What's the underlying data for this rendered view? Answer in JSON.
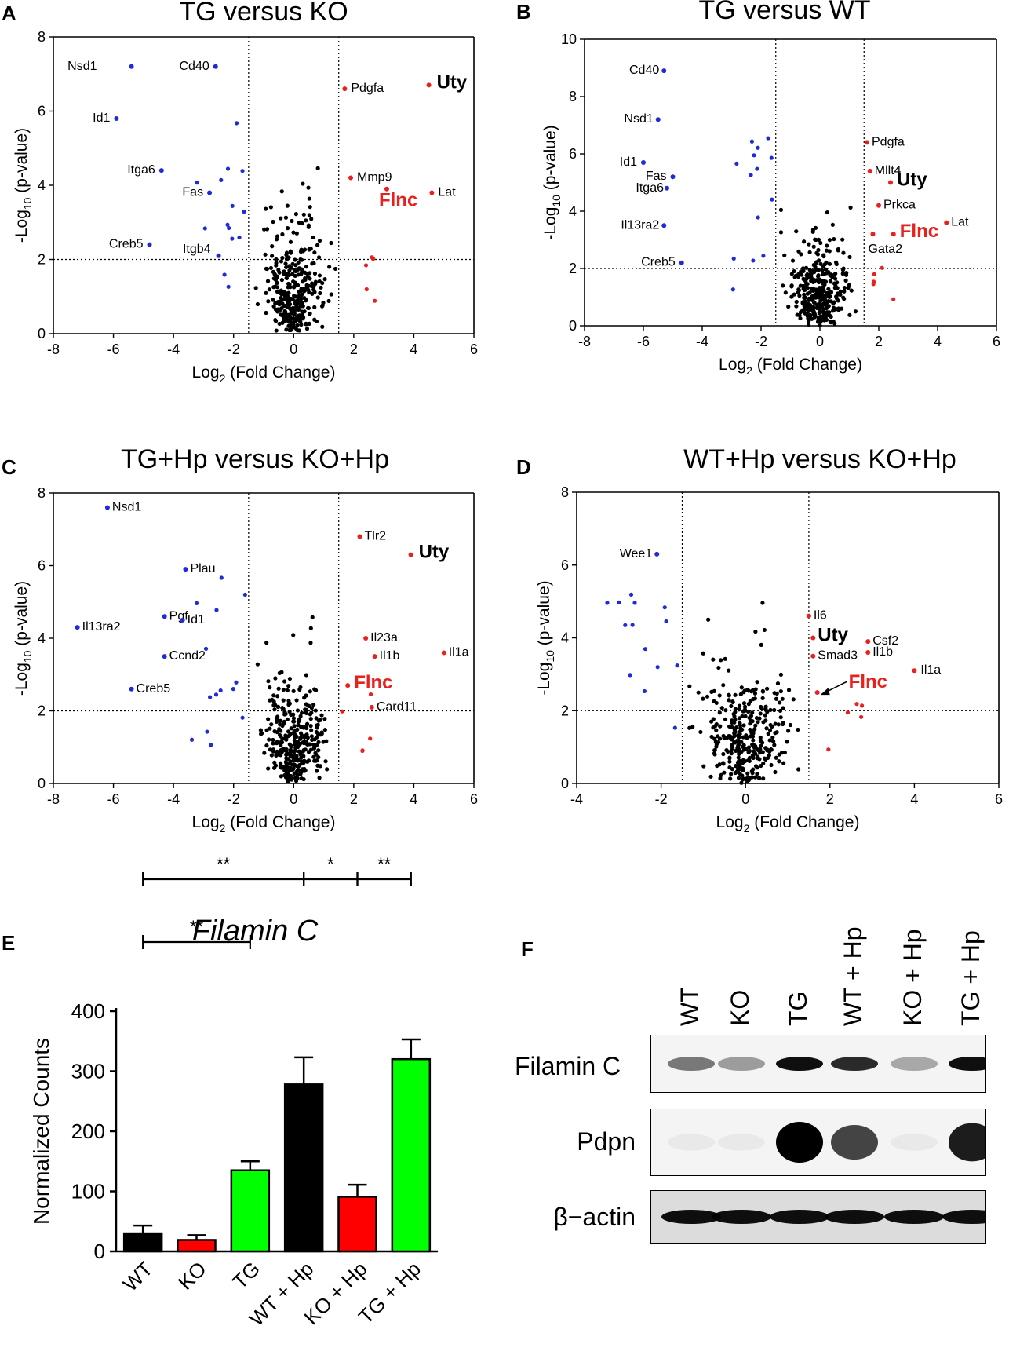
{
  "panels": [
    {
      "letter": "A",
      "title": "TG  versus  KO",
      "xlabel_main": "Log",
      "xlabel_sub": "2",
      "xlabel_rest": " (Fold Change)",
      "ylabel_main": "-Log",
      "ylabel_sub": "10",
      "ylabel_rest": " (p-value)",
      "xticks": [
        "-8",
        "-6",
        "-4",
        "-2",
        "0",
        "2",
        "4",
        "6"
      ],
      "yticks": [
        "0",
        "2",
        "4",
        "6",
        "8"
      ],
      "labels": [
        {
          "text": "Nsd1",
          "color": "#000000"
        },
        {
          "text": "Cd40",
          "color": "#000000"
        },
        {
          "text": "Id1",
          "color": "#000000"
        },
        {
          "text": "Itga6",
          "color": "#000000"
        },
        {
          "text": "Fas",
          "color": "#000000"
        },
        {
          "text": "Creb5",
          "color": "#000000"
        },
        {
          "text": "Itgb4",
          "color": "#000000"
        },
        {
          "text": "Pdgfa",
          "color": "#000000"
        },
        {
          "text": "Uty",
          "color": "#000000"
        },
        {
          "text": "Mmp9",
          "color": "#000000"
        },
        {
          "text": "Lat",
          "color": "#000000"
        },
        {
          "text": "Flnc",
          "color": "#e8201e"
        }
      ]
    },
    {
      "letter": "B",
      "title": "TG  versus  WT",
      "xlabel_main": "Log",
      "xlabel_sub": "2",
      "xlabel_rest": " (Fold Change)",
      "ylabel_main": "-Log",
      "ylabel_sub": "10",
      "ylabel_rest": " (p-value)",
      "xticks": [
        "-8",
        "-6",
        "-4",
        "-2",
        "0",
        "2",
        "4",
        "6"
      ],
      "yticks": [
        "0",
        "2",
        "4",
        "6",
        "8",
        "10"
      ],
      "labels": [
        {
          "text": "Cd40",
          "color": "#000000"
        },
        {
          "text": "Nsd1",
          "color": "#000000"
        },
        {
          "text": "Id1",
          "color": "#000000"
        },
        {
          "text": "Fas",
          "color": "#000000"
        },
        {
          "text": "Itga6",
          "color": "#000000"
        },
        {
          "text": "Il13ra2",
          "color": "#000000"
        },
        {
          "text": "Creb5",
          "color": "#000000"
        },
        {
          "text": "Pdgfa",
          "color": "#000000"
        },
        {
          "text": "Mllt4",
          "color": "#000000"
        },
        {
          "text": "Uty",
          "color": "#000000"
        },
        {
          "text": "Prkca",
          "color": "#000000"
        },
        {
          "text": "Lat",
          "color": "#000000"
        },
        {
          "text": "Flnc",
          "color": "#e8201e"
        },
        {
          "text": "Gata2",
          "color": "#000000"
        }
      ]
    },
    {
      "letter": "C",
      "title": "TG+Hp  versus  KO+Hp",
      "xlabel_main": "Log",
      "xlabel_sub": "2",
      "xlabel_rest": " (Fold Change)",
      "ylabel_main": "-Log",
      "ylabel_sub": "10",
      "ylabel_rest": " (p-value)",
      "xticks": [
        "-8",
        "-6",
        "-4",
        "-2",
        "0",
        "2",
        "4",
        "6"
      ],
      "yticks": [
        "0",
        "2",
        "4",
        "6",
        "8"
      ],
      "labels": [
        {
          "text": "Nsd1",
          "color": "#000000"
        },
        {
          "text": "Plau",
          "color": "#000000"
        },
        {
          "text": "Pgf",
          "color": "#000000"
        },
        {
          "text": "Id1",
          "color": "#000000"
        },
        {
          "text": "Il13ra2",
          "color": "#000000"
        },
        {
          "text": "Ccnd2",
          "color": "#000000"
        },
        {
          "text": "Creb5",
          "color": "#000000"
        },
        {
          "text": "Tlr2",
          "color": "#000000"
        },
        {
          "text": "Uty",
          "color": "#000000"
        },
        {
          "text": "Il23a",
          "color": "#000000"
        },
        {
          "text": "Il1b",
          "color": "#000000"
        },
        {
          "text": "Il1a",
          "color": "#000000"
        },
        {
          "text": "Flnc",
          "color": "#e8201e"
        },
        {
          "text": "Card11",
          "color": "#000000"
        }
      ]
    },
    {
      "letter": "D",
      "title": "WT+Hp  versus  KO+Hp",
      "xlabel_main": "Log",
      "xlabel_sub": "2",
      "xlabel_rest": " (Fold Change)",
      "ylabel_main": "-Log",
      "ylabel_sub": "10",
      "ylabel_rest": " (p-value)",
      "xticks": [
        "-4",
        "-2",
        "0",
        "2",
        "4",
        "6"
      ],
      "yticks": [
        "0",
        "2",
        "4",
        "6",
        "8"
      ],
      "labels": [
        {
          "text": "Wee1",
          "color": "#000000"
        },
        {
          "text": "Il6",
          "color": "#000000"
        },
        {
          "text": "Uty",
          "color": "#000000"
        },
        {
          "text": "Smad3",
          "color": "#000000"
        },
        {
          "text": "Csf2",
          "color": "#000000"
        },
        {
          "text": "Il1b",
          "color": "#000000"
        },
        {
          "text": "Il1a",
          "color": "#000000"
        },
        {
          "text": "Flnc",
          "color": "#e8201e"
        }
      ]
    }
  ],
  "chart_data": [
    {
      "type": "scatter",
      "panel": "A",
      "title": "TG  versus  KO",
      "xlabel": "Log2 (Fold Change)",
      "ylabel": "-Log10 (p-value)",
      "xlim": [
        -8,
        6
      ],
      "ylim": [
        0,
        8
      ],
      "thresholds": {
        "x": [
          -1.5,
          1.5
        ],
        "y": 2
      },
      "labeled_points": [
        {
          "label": "Nsd1",
          "x": -5.4,
          "y": 7.2,
          "group": "down"
        },
        {
          "label": "Cd40",
          "x": -2.6,
          "y": 7.2,
          "group": "down"
        },
        {
          "label": "Id1",
          "x": -5.9,
          "y": 5.8,
          "group": "down"
        },
        {
          "label": "Itga6",
          "x": -4.4,
          "y": 4.4,
          "group": "down"
        },
        {
          "label": "Fas",
          "x": -2.8,
          "y": 3.8,
          "group": "down"
        },
        {
          "label": "Creb5",
          "x": -4.8,
          "y": 2.4,
          "group": "down"
        },
        {
          "label": "Itgb4",
          "x": -2.5,
          "y": 2.1,
          "group": "down"
        },
        {
          "label": "Pdgfa",
          "x": 1.7,
          "y": 6.6,
          "group": "up"
        },
        {
          "label": "Uty",
          "x": 4.5,
          "y": 6.7,
          "group": "up"
        },
        {
          "label": "Mmp9",
          "x": 1.9,
          "y": 4.2,
          "group": "up"
        },
        {
          "label": "Lat",
          "x": 4.6,
          "y": 3.8,
          "group": "up"
        },
        {
          "label": "Flnc",
          "x": 3.1,
          "y": 3.9,
          "group": "up"
        }
      ]
    },
    {
      "type": "scatter",
      "panel": "B",
      "title": "TG  versus  WT",
      "xlabel": "Log2 (Fold Change)",
      "ylabel": "-Log10 (p-value)",
      "xlim": [
        -8,
        6
      ],
      "ylim": [
        0,
        10
      ],
      "thresholds": {
        "x": [
          -1.5,
          1.5
        ],
        "y": 2
      },
      "labeled_points": [
        {
          "label": "Cd40",
          "x": -5.3,
          "y": 8.9,
          "group": "down"
        },
        {
          "label": "Nsd1",
          "x": -5.5,
          "y": 7.2,
          "group": "down"
        },
        {
          "label": "Id1",
          "x": -6.0,
          "y": 5.7,
          "group": "down"
        },
        {
          "label": "Fas",
          "x": -5.0,
          "y": 5.2,
          "group": "down"
        },
        {
          "label": "Itga6",
          "x": -5.2,
          "y": 4.8,
          "group": "down"
        },
        {
          "label": "Il13ra2",
          "x": -5.3,
          "y": 3.5,
          "group": "down"
        },
        {
          "label": "Creb5",
          "x": -4.7,
          "y": 2.2,
          "group": "down"
        },
        {
          "label": "Pdgfa",
          "x": 1.6,
          "y": 6.4,
          "group": "up"
        },
        {
          "label": "Mllt4",
          "x": 1.7,
          "y": 5.4,
          "group": "up"
        },
        {
          "label": "Uty",
          "x": 2.4,
          "y": 5.0,
          "group": "up"
        },
        {
          "label": "Prkca",
          "x": 2.0,
          "y": 4.2,
          "group": "up"
        },
        {
          "label": "Lat",
          "x": 4.3,
          "y": 3.6,
          "group": "up"
        },
        {
          "label": "Flnc",
          "x": 2.5,
          "y": 3.2,
          "group": "up"
        },
        {
          "label": "Gata2",
          "x": 1.8,
          "y": 3.2,
          "group": "up"
        }
      ]
    },
    {
      "type": "scatter",
      "panel": "C",
      "title": "TG+Hp  versus  KO+Hp",
      "xlabel": "Log2 (Fold Change)",
      "ylabel": "-Log10 (p-value)",
      "xlim": [
        -8,
        6
      ],
      "ylim": [
        0,
        8
      ],
      "thresholds": {
        "x": [
          -1.5,
          1.5
        ],
        "y": 2
      },
      "labeled_points": [
        {
          "label": "Nsd1",
          "x": -6.2,
          "y": 7.6,
          "group": "down"
        },
        {
          "label": "Plau",
          "x": -3.6,
          "y": 5.9,
          "group": "down"
        },
        {
          "label": "Pgf",
          "x": -4.3,
          "y": 4.6,
          "group": "down"
        },
        {
          "label": "Id1",
          "x": -3.7,
          "y": 4.5,
          "group": "down"
        },
        {
          "label": "Il13ra2",
          "x": -7.2,
          "y": 4.3,
          "group": "down"
        },
        {
          "label": "Ccnd2",
          "x": -4.3,
          "y": 3.5,
          "group": "down"
        },
        {
          "label": "Creb5",
          "x": -5.4,
          "y": 2.6,
          "group": "down"
        },
        {
          "label": "Tlr2",
          "x": 2.2,
          "y": 6.8,
          "group": "up"
        },
        {
          "label": "Uty",
          "x": 3.9,
          "y": 6.3,
          "group": "up"
        },
        {
          "label": "Il23a",
          "x": 2.4,
          "y": 4.0,
          "group": "up"
        },
        {
          "label": "Il1b",
          "x": 2.7,
          "y": 3.5,
          "group": "up"
        },
        {
          "label": "Il1a",
          "x": 5.0,
          "y": 3.6,
          "group": "up"
        },
        {
          "label": "Flnc",
          "x": 1.8,
          "y": 2.7,
          "group": "up"
        },
        {
          "label": "Card11",
          "x": 2.6,
          "y": 2.1,
          "group": "up"
        }
      ]
    },
    {
      "type": "scatter",
      "panel": "D",
      "title": "WT+Hp  versus  KO+Hp",
      "xlabel": "Log2 (Fold Change)",
      "ylabel": "-Log10 (p-value)",
      "xlim": [
        -4,
        6
      ],
      "ylim": [
        0,
        8
      ],
      "thresholds": {
        "x": [
          -1.5,
          1.5
        ],
        "y": 2
      },
      "labeled_points": [
        {
          "label": "Wee1",
          "x": -2.1,
          "y": 6.3,
          "group": "down"
        },
        {
          "label": "Il6",
          "x": 1.5,
          "y": 4.6,
          "group": "up"
        },
        {
          "label": "Uty",
          "x": 1.6,
          "y": 4.0,
          "group": "up"
        },
        {
          "label": "Smad3",
          "x": 1.6,
          "y": 3.5,
          "group": "up"
        },
        {
          "label": "Csf2",
          "x": 2.9,
          "y": 3.9,
          "group": "up"
        },
        {
          "label": "Il1b",
          "x": 2.9,
          "y": 3.6,
          "group": "up"
        },
        {
          "label": "Il1a",
          "x": 4.0,
          "y": 3.1,
          "group": "up"
        },
        {
          "label": "Flnc",
          "x": 1.7,
          "y": 2.5,
          "group": "up"
        }
      ]
    },
    {
      "type": "bar",
      "panel": "E",
      "title": "Filamin C",
      "ylabel": "Normalized Counts",
      "ylim": [
        0,
        400
      ],
      "yticks": [
        "0",
        "100",
        "200",
        "300",
        "400"
      ],
      "categories": [
        "WT",
        "KO",
        "TG",
        "WT + Hp",
        "KO + Hp",
        "TG + Hp"
      ],
      "values": [
        30,
        19,
        135,
        278,
        91,
        320
      ],
      "errors": [
        13,
        8,
        15,
        45,
        20,
        33
      ],
      "colors": [
        "#000000",
        "#ff0000",
        "#00ff00",
        "#000000",
        "#ff0000",
        "#00ff00"
      ],
      "significance": [
        {
          "from": "WT",
          "to": "TG",
          "label": "**"
        },
        {
          "from": "WT",
          "to": "WT + Hp",
          "label": "**"
        },
        {
          "from": "WT + Hp",
          "to": "KO + Hp",
          "label": "*"
        },
        {
          "from": "KO + Hp",
          "to": "TG + Hp",
          "label": "**"
        }
      ]
    }
  ],
  "panel_e": {
    "letter": "E"
  },
  "panel_f": {
    "letter": "F",
    "lanes": [
      "WT",
      "KO",
      "TG",
      "WT + Hp",
      "KO + Hp",
      "TG + Hp"
    ],
    "blots": [
      {
        "label": "Filamin C",
        "intensity": [
          0.55,
          0.4,
          0.95,
          0.85,
          0.35,
          0.95
        ]
      },
      {
        "label": "Pdpn",
        "intensity": [
          0.04,
          0.04,
          1.0,
          0.75,
          0.04,
          0.9
        ]
      },
      {
        "label": "β−actin",
        "intensity": [
          0.95,
          0.95,
          0.95,
          0.95,
          0.95,
          0.95
        ]
      }
    ]
  }
}
